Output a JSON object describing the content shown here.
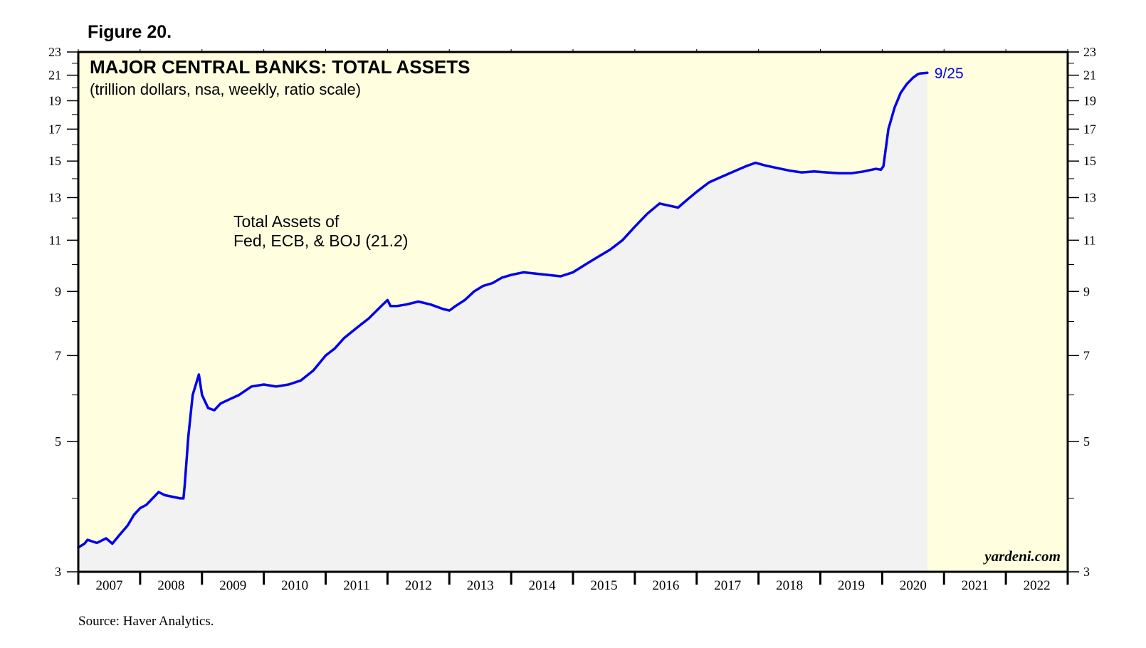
{
  "figure_label": "Figure 20.",
  "source": "Source: Haver Analytics.",
  "credit": "yardeni.com",
  "colors": {
    "plot_background": "#ffffe0",
    "area_fill": "#f2f2f2",
    "line": "#0000ee",
    "frame": "#000000"
  },
  "chart_data": {
    "type": "area",
    "title": "MAJOR CENTRAL BANKS: TOTAL ASSETS",
    "subtitle": "(trillion dollars, nsa, weekly, ratio scale)",
    "annotation_lines": [
      "Total Assets of",
      "Fed, ECB, & BOJ (21.2)"
    ],
    "end_label": "9/25",
    "y_scale": "log",
    "ylim": [
      3,
      23
    ],
    "y_ticks": [
      3,
      5,
      7,
      9,
      11,
      13,
      15,
      17,
      19,
      21,
      23
    ],
    "y_minor_ticks": [
      4,
      6,
      8,
      10,
      12,
      14,
      16,
      18,
      20,
      22
    ],
    "x_range": [
      2007,
      2023
    ],
    "x_tick_labels": [
      "2007",
      "2008",
      "2009",
      "2010",
      "2011",
      "2012",
      "2013",
      "2014",
      "2015",
      "2016",
      "2017",
      "2018",
      "2019",
      "2020",
      "2021",
      "2022"
    ],
    "grid": false,
    "series": [
      {
        "x": [
          2007.0,
          2007.1,
          2007.15,
          2007.3,
          2007.45,
          2007.55,
          2007.65,
          2007.8,
          2007.9,
          2008.0,
          2008.1,
          2008.2,
          2008.3,
          2008.4,
          2008.55,
          2008.65,
          2008.7,
          2008.72,
          2008.78,
          2008.85,
          2008.95,
          2009.0,
          2009.1,
          2009.2,
          2009.3,
          2009.45,
          2009.6,
          2009.8,
          2010.0,
          2010.2,
          2010.4,
          2010.6,
          2010.8,
          2011.0,
          2011.15,
          2011.3,
          2011.5,
          2011.7,
          2011.9,
          2012.0,
          2012.05,
          2012.15,
          2012.3,
          2012.5,
          2012.7,
          2012.9,
          2013.0,
          2013.1,
          2013.25,
          2013.4,
          2013.55,
          2013.7,
          2013.85,
          2014.0,
          2014.2,
          2014.4,
          2014.6,
          2014.8,
          2015.0,
          2015.2,
          2015.4,
          2015.6,
          2015.8,
          2016.0,
          2016.2,
          2016.4,
          2016.55,
          2016.7,
          2016.85,
          2017.0,
          2017.2,
          2017.4,
          2017.6,
          2017.8,
          2017.95,
          2018.1,
          2018.3,
          2018.5,
          2018.7,
          2018.9,
          2019.1,
          2019.3,
          2019.5,
          2019.7,
          2019.9,
          2019.98,
          2020.02,
          2020.1,
          2020.2,
          2020.3,
          2020.4,
          2020.5,
          2020.58,
          2020.62,
          2020.73
        ],
        "y": [
          3.3,
          3.35,
          3.4,
          3.36,
          3.42,
          3.35,
          3.45,
          3.6,
          3.75,
          3.85,
          3.9,
          4.0,
          4.1,
          4.05,
          4.02,
          4.0,
          4.0,
          4.2,
          5.1,
          6.0,
          6.5,
          6.0,
          5.7,
          5.65,
          5.8,
          5.9,
          6.0,
          6.2,
          6.25,
          6.2,
          6.25,
          6.35,
          6.6,
          7.0,
          7.2,
          7.5,
          7.8,
          8.1,
          8.5,
          8.7,
          8.5,
          8.5,
          8.55,
          8.65,
          8.55,
          8.4,
          8.35,
          8.5,
          8.7,
          9.0,
          9.2,
          9.3,
          9.5,
          9.6,
          9.7,
          9.65,
          9.6,
          9.55,
          9.7,
          10.0,
          10.3,
          10.6,
          11.0,
          11.6,
          12.2,
          12.7,
          12.6,
          12.5,
          12.9,
          13.3,
          13.8,
          14.1,
          14.4,
          14.7,
          14.9,
          14.75,
          14.6,
          14.45,
          14.35,
          14.4,
          14.35,
          14.3,
          14.3,
          14.4,
          14.55,
          14.5,
          14.7,
          17.0,
          18.5,
          19.6,
          20.3,
          20.8,
          21.1,
          21.15,
          21.2
        ]
      }
    ]
  }
}
